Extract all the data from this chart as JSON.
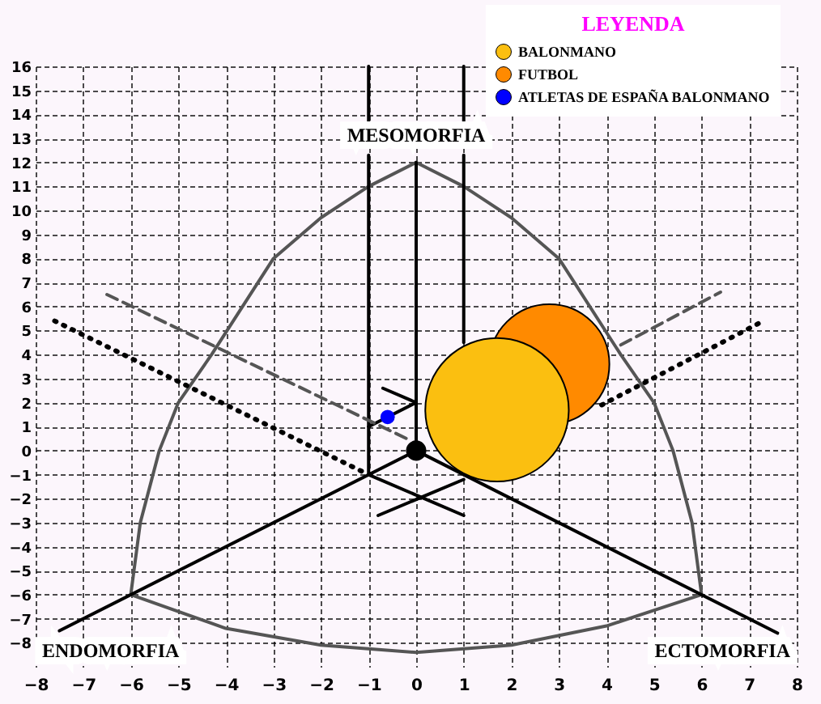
{
  "chart_data": {
    "type": "bubble",
    "xlim": [
      -8,
      8
    ],
    "ylim": [
      -9,
      16
    ],
    "xticks": [
      -8,
      -7,
      -6,
      -5,
      -4,
      -3,
      -2,
      -1,
      0,
      1,
      2,
      3,
      4,
      5,
      6,
      7,
      8
    ],
    "yticks": [
      -8,
      -7,
      -6,
      -5,
      -4,
      -3,
      -2,
      -1,
      0,
      1,
      2,
      3,
      4,
      5,
      6,
      7,
      8,
      9,
      10,
      11,
      12,
      13,
      14,
      15,
      16
    ],
    "grid": true,
    "legend": "top right",
    "legend_title": "LEYENDA",
    "marker": "circle",
    "annotations": [
      "MESOMORFIA",
      "ENDOMORFIA",
      "ECTOMORFIA"
    ],
    "series": [
      {
        "type": "line",
        "marker": "none",
        "color": "#555555",
        "line_style": "solid",
        "x": [
          -6,
          -5.8,
          -5.4,
          -5,
          -4.3,
          -3,
          -2,
          -1,
          0
        ],
        "values": [
          -6,
          -3,
          0,
          2,
          4,
          8,
          9.7,
          11,
          12
        ]
      },
      {
        "type": "line",
        "marker": "none",
        "color": "#555555",
        "line_style": "solid",
        "x": [
          0,
          1,
          2,
          3,
          4.3,
          5,
          5.4,
          5.8,
          6
        ],
        "values": [
          12,
          11,
          9.7,
          8,
          4,
          2,
          0,
          -3,
          -6
        ]
      },
      {
        "type": "line",
        "marker": "none",
        "color": "#555555",
        "line_style": "solid",
        "x": [
          -6,
          -4,
          -2,
          0,
          2,
          4,
          6
        ],
        "values": [
          -6,
          -7.4,
          -8.1,
          -8.4,
          -8.1,
          -7.3,
          -6
        ]
      },
      {
        "type": "line",
        "marker": "none",
        "color": "#000000",
        "line_style": "solid",
        "x": [
          -7.5,
          0,
          7.6
        ],
        "values": [
          -7.5,
          0,
          -7.6
        ]
      },
      {
        "type": "line",
        "marker": "none",
        "color": "#000000",
        "line_style": "solid",
        "x": [
          0,
          0
        ],
        "values": [
          0,
          12
        ]
      },
      {
        "type": "line",
        "marker": "none",
        "color": "#000000",
        "line_style": "solid",
        "x": [
          -1,
          -1
        ],
        "values": [
          16,
          13.7
        ]
      },
      {
        "type": "line",
        "marker": "none",
        "color": "#000000",
        "line_style": "solid",
        "x": [
          -1,
          -1
        ],
        "values": [
          12.3,
          -1
        ]
      },
      {
        "type": "line",
        "marker": "none",
        "color": "#000000",
        "line_style": "solid",
        "x": [
          1,
          1
        ],
        "values": [
          16,
          13.7
        ]
      },
      {
        "type": "line",
        "marker": "none",
        "color": "#000000",
        "line_style": "solid",
        "x": [
          1,
          1
        ],
        "values": [
          12.3,
          4.5
        ]
      },
      {
        "type": "line",
        "marker": "none",
        "color": "#000000",
        "line_style": "solid",
        "x": [
          -0.7,
          0,
          -1
        ],
        "values": [
          2.6,
          2,
          1
        ]
      },
      {
        "type": "line",
        "marker": "none",
        "color": "#000000",
        "line_style": "solid",
        "x": [
          -1,
          1
        ],
        "values": [
          -1,
          -2.7
        ]
      },
      {
        "type": "line",
        "marker": "none",
        "color": "#000000",
        "line_style": "solid",
        "x": [
          -0.8,
          1
        ],
        "values": [
          -2.7,
          -1.2
        ]
      },
      {
        "type": "line",
        "marker": "none",
        "color": "#555555",
        "line_style": "dashed",
        "x": [
          -6.5,
          -0.2
        ],
        "values": [
          6.5,
          0.5
        ]
      },
      {
        "type": "line",
        "marker": "none",
        "color": "#555555",
        "line_style": "dashed",
        "x": [
          4.3,
          6.4
        ],
        "values": [
          4.4,
          6.6
        ]
      },
      {
        "type": "line",
        "marker": "none",
        "color": "#000000",
        "line_style": "dotted",
        "x": [
          -7.6,
          -1
        ],
        "values": [
          5.4,
          -1
        ]
      },
      {
        "type": "line",
        "marker": "none",
        "color": "#000000",
        "line_style": "dotted",
        "x": [
          3.9,
          7.3
        ],
        "values": [
          1.9,
          5.4
        ]
      },
      {
        "type": "scatter",
        "color": "#000000",
        "x": [
          0
        ],
        "values": [
          0
        ],
        "sizes": [
          0.02
        ]
      },
      {
        "name": "BALONMANO",
        "color": "#fbbf10",
        "x": [
          1.7
        ],
        "values": [
          1.7
        ],
        "sizes": [
          1
        ]
      },
      {
        "name": "FUTBOL",
        "color": "#ff8a00",
        "x": [
          2.8
        ],
        "values": [
          3.6
        ],
        "sizes": [
          0.7
        ]
      },
      {
        "type": "scatter",
        "name": "ATLETAS DE ESPAÑA BALONMANO",
        "color": "#0000ff",
        "x": [
          -0.6
        ],
        "values": [
          1.4
        ],
        "sizes": [
          0.01
        ]
      }
    ]
  }
}
